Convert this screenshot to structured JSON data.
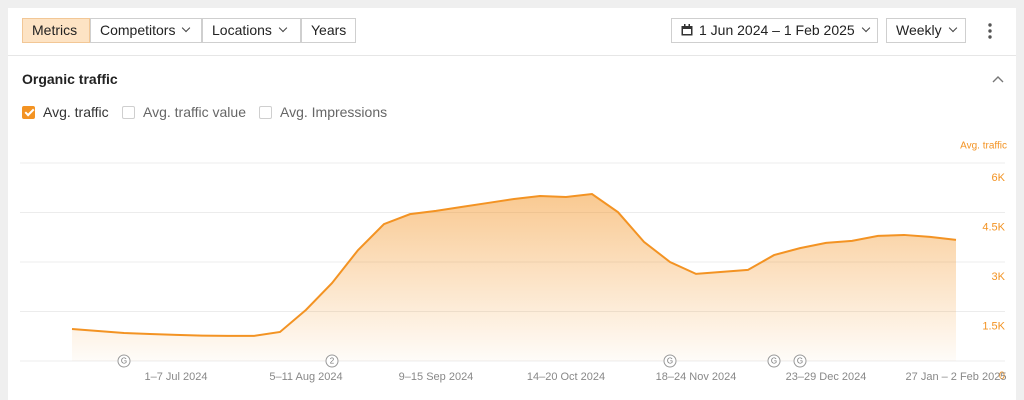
{
  "toolbar": {
    "tabs": [
      "Metrics",
      "Competitors",
      "Locations",
      "Years"
    ],
    "date_range": "1 Jun 2024 – 1 Feb 2025",
    "interval": "Weekly"
  },
  "panel": {
    "title": "Organic traffic",
    "metrics": [
      {
        "label": "Avg. traffic",
        "checked": true
      },
      {
        "label": "Avg. traffic value",
        "checked": false
      },
      {
        "label": "Avg. Impressions",
        "checked": false
      }
    ]
  },
  "chart_data": {
    "type": "area",
    "y_label": "Avg. traffic",
    "color": "#f39323",
    "grid": true,
    "categories": [
      null,
      null,
      null,
      null,
      "1–7 Jul 2024",
      null,
      null,
      null,
      null,
      "5–11 Aug 2024",
      null,
      null,
      null,
      null,
      "9–15 Sep 2024",
      null,
      null,
      null,
      null,
      "14–20 Oct 2024",
      null,
      null,
      null,
      null,
      "18–24 Nov 2024",
      null,
      null,
      null,
      null,
      "23–29 Dec 2024",
      null,
      null,
      null,
      null,
      "27 Jan – 2 Feb 2025"
    ],
    "values": [
      970,
      910,
      850,
      820,
      790,
      770,
      760,
      760,
      880,
      1550,
      2360,
      3360,
      4150,
      4450,
      4550,
      4670,
      4790,
      4910,
      5000,
      4970,
      5060,
      4510,
      3610,
      3000,
      2640,
      2700,
      2760,
      3210,
      3420,
      3580,
      3640,
      3790,
      3820,
      3760,
      3670
    ],
    "annotations": [
      null,
      null,
      "G",
      null,
      null,
      null,
      null,
      null,
      null,
      null,
      "2",
      null,
      null,
      null,
      null,
      null,
      null,
      null,
      null,
      null,
      null,
      null,
      null,
      "G",
      null,
      null,
      null,
      "G",
      "G",
      null,
      null,
      null,
      null,
      null,
      null
    ],
    "ylim": [
      0,
      6000
    ],
    "yticks": [
      0,
      {
        "value": 1500,
        "label": "1.5K"
      },
      {
        "value": 3000,
        "label": "3K"
      },
      {
        "value": 4500,
        "label": "4.5K"
      },
      {
        "value": 6000,
        "label": "6K"
      }
    ]
  }
}
